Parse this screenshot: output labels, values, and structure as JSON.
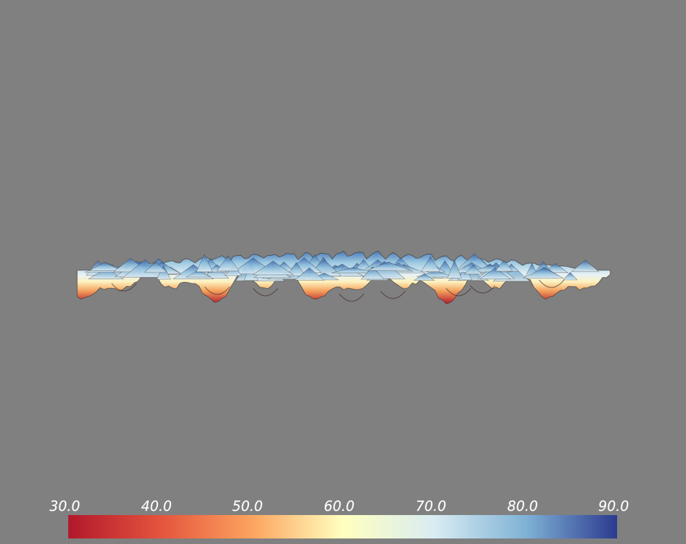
{
  "scene": {
    "background": "#808080",
    "object": "terrain-surface",
    "colormap": "red-yellow-blue (RdYlBu)"
  },
  "colorbar": {
    "range": [
      30.0,
      90.0
    ],
    "ticks": [
      "30.0",
      "40.0",
      "50.0",
      "60.0",
      "70.0",
      "80.0",
      "90.0"
    ],
    "colors": {
      "low": "#b2182b",
      "low_mid": "#ef8a62",
      "mid_low": "#fddb8c",
      "mid": "#ffffbf",
      "mid_high": "#d1e5f0",
      "high_mid": "#67a9cf",
      "high": "#2c3a8f"
    }
  }
}
